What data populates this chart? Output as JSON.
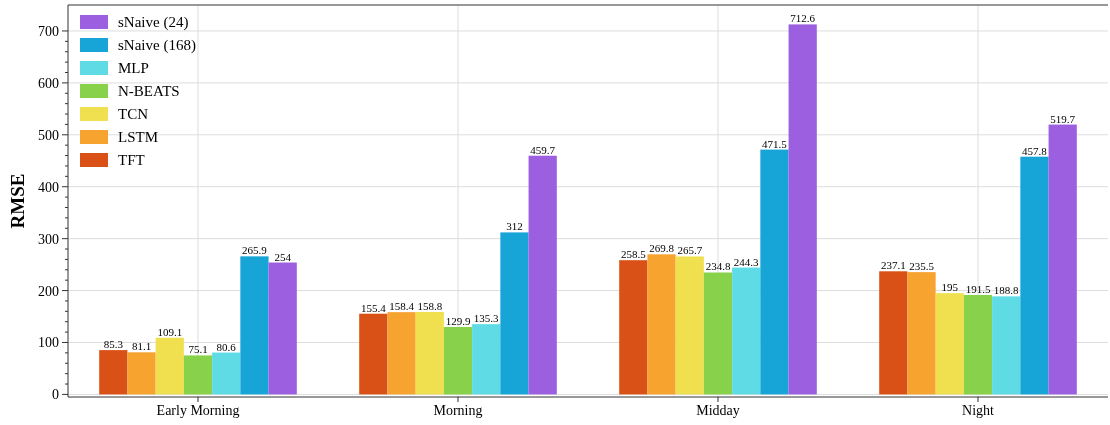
{
  "chart_data": {
    "type": "bar",
    "ylabel": "RMSE",
    "categories": [
      "Early Morning",
      "Morning",
      "Midday",
      "Night"
    ],
    "series": [
      {
        "name": "TFT",
        "color": "#d95116",
        "values": [
          85.3,
          155.4,
          258.5,
          237.1
        ]
      },
      {
        "name": "LSTM",
        "color": "#f7a330",
        "values": [
          81.1,
          158.4,
          269.8,
          235.5
        ]
      },
      {
        "name": "TCN",
        "color": "#f0e050",
        "values": [
          109.1,
          158.8,
          265.7,
          195
        ]
      },
      {
        "name": "N-BEATS",
        "color": "#88d14a",
        "values": [
          75.1,
          129.9,
          234.8,
          191.5
        ]
      },
      {
        "name": "MLP",
        "color": "#5fdbe6",
        "values": [
          80.6,
          135.3,
          244.3,
          188.8
        ]
      },
      {
        "name": "sNaive (168)",
        "color": "#17a5d8",
        "values": [
          265.9,
          312,
          471.5,
          457.8
        ]
      },
      {
        "name": "sNaive (24)",
        "color": "#9b5fe0",
        "values": [
          254,
          459.7,
          712.6,
          519.7
        ]
      }
    ],
    "ylim": [
      -5,
      750
    ],
    "yticks": [
      0,
      100,
      200,
      300,
      400,
      500,
      600,
      700
    ],
    "grid": true,
    "legend": "top left",
    "data_labels": true
  }
}
